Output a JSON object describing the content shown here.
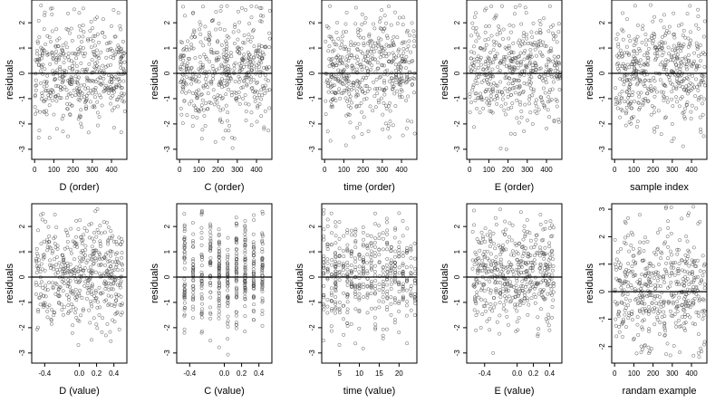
{
  "chart_data": [
    {
      "type": "scatter",
      "xlabel": "D (order)",
      "ylabel": "residuals",
      "xlim": [
        -15,
        480
      ],
      "ylim": [
        -3.4,
        2.9
      ],
      "xticks": [
        0,
        100,
        200,
        300,
        400
      ],
      "yticks": [
        -3,
        -2,
        -1,
        0,
        1,
        2
      ],
      "hline": 0,
      "grid": false,
      "point_count": 470,
      "x_range": [
        1,
        470
      ],
      "y_range": [
        -3.2,
        2.7
      ],
      "clusters": null,
      "seed": 11
    },
    {
      "type": "scatter",
      "xlabel": "C (order)",
      "ylabel": "residuals",
      "xlim": [
        -15,
        480
      ],
      "ylim": [
        -3.4,
        2.9
      ],
      "xticks": [
        0,
        100,
        200,
        300,
        400
      ],
      "yticks": [
        -3,
        -2,
        -1,
        0,
        1,
        2
      ],
      "hline": 0,
      "grid": false,
      "point_count": 470,
      "x_range": [
        1,
        470
      ],
      "y_range": [
        -3.2,
        2.7
      ],
      "clusters": null,
      "seed": 23
    },
    {
      "type": "scatter",
      "xlabel": "time (order)",
      "ylabel": "residuals",
      "xlim": [
        -15,
        480
      ],
      "ylim": [
        -3.4,
        2.9
      ],
      "xticks": [
        0,
        100,
        200,
        300,
        400
      ],
      "yticks": [
        -3,
        -2,
        -1,
        0,
        1,
        2
      ],
      "hline": 0,
      "grid": false,
      "point_count": 470,
      "x_range": [
        1,
        470
      ],
      "y_range": [
        -3.2,
        2.7
      ],
      "clusters": null,
      "seed": 37
    },
    {
      "type": "scatter",
      "xlabel": "E (order)",
      "ylabel": "residuals",
      "xlim": [
        -15,
        480
      ],
      "ylim": [
        -3.4,
        2.9
      ],
      "xticks": [
        0,
        100,
        200,
        300,
        400
      ],
      "yticks": [
        -3,
        -2,
        -1,
        0,
        1,
        2
      ],
      "hline": 0,
      "grid": false,
      "point_count": 470,
      "x_range": [
        1,
        470
      ],
      "y_range": [
        -3.2,
        2.7
      ],
      "clusters": null,
      "seed": 41
    },
    {
      "type": "scatter",
      "xlabel": "sample index",
      "ylabel": "residuals",
      "xlim": [
        -15,
        480
      ],
      "ylim": [
        -3.4,
        2.9
      ],
      "xticks": [
        0,
        100,
        200,
        300,
        400
      ],
      "yticks": [
        -3,
        -2,
        -1,
        0,
        1,
        2
      ],
      "hline": 0,
      "grid": false,
      "point_count": 470,
      "x_range": [
        1,
        470
      ],
      "y_range": [
        -3.2,
        2.7
      ],
      "clusters": null,
      "seed": 53
    },
    {
      "type": "scatter",
      "xlabel": "D (value)",
      "ylabel": "residuals",
      "xlim": [
        -0.55,
        0.55
      ],
      "ylim": [
        -3.4,
        2.9
      ],
      "xticks": [
        -0.4,
        0.0,
        0.2,
        0.4
      ],
      "xtick_labels": [
        "-0.4",
        "0.0",
        "0.2",
        "0.4"
      ],
      "yticks": [
        -3,
        -2,
        -1,
        0,
        1,
        2
      ],
      "hline": 0,
      "grid": false,
      "point_count": 470,
      "x_range": [
        -0.5,
        0.5
      ],
      "y_range": [
        -3.2,
        2.7
      ],
      "clusters": null,
      "seed": 61
    },
    {
      "type": "scatter",
      "xlabel": "C (value)",
      "ylabel": "residuals",
      "xlim": [
        -0.55,
        0.55
      ],
      "ylim": [
        -3.4,
        2.9
      ],
      "xticks": [
        -0.4,
        0.0,
        0.2,
        0.4
      ],
      "xtick_labels": [
        "-0.4",
        "0.0",
        "0.2",
        "0.4"
      ],
      "yticks": [
        -3,
        -2,
        -1,
        0,
        1,
        2
      ],
      "hline": 0,
      "grid": false,
      "point_count": 470,
      "x_range": [
        -0.5,
        0.5
      ],
      "y_range": [
        -3.2,
        2.7
      ],
      "clusters": [
        -0.46,
        -0.36,
        -0.26,
        -0.16,
        -0.06,
        0.04,
        0.14,
        0.24,
        0.34,
        0.44
      ],
      "seed": 71
    },
    {
      "type": "scatter",
      "xlabel": "time (value)",
      "ylabel": "residuals",
      "xlim": [
        0.5,
        24.5
      ],
      "ylim": [
        -3.4,
        2.9
      ],
      "xticks": [
        5,
        10,
        15,
        20
      ],
      "yticks": [
        -3,
        -2,
        -1,
        0,
        1,
        2
      ],
      "hline": 0,
      "grid": false,
      "point_count": 470,
      "x_range": [
        1,
        24
      ],
      "y_range": [
        -3.2,
        2.7
      ],
      "clusters": [
        1,
        2,
        3,
        4,
        5,
        6,
        7,
        8,
        9,
        10,
        11,
        12,
        13,
        14,
        15,
        16,
        17,
        18,
        19,
        20,
        21,
        22,
        23,
        24
      ],
      "seed": 83
    },
    {
      "type": "scatter",
      "xlabel": "E (value)",
      "ylabel": "residuals",
      "xlim": [
        -0.62,
        0.55
      ],
      "ylim": [
        -3.4,
        2.9
      ],
      "xticks": [
        -0.4,
        0.0,
        0.2,
        0.4
      ],
      "xtick_labels": [
        "-0.4",
        "0.0",
        "0.2",
        "0.4"
      ],
      "yticks": [
        -3,
        -2,
        -1,
        0,
        1,
        2
      ],
      "hline": 0,
      "grid": false,
      "point_count": 470,
      "x_range": [
        -0.55,
        0.45
      ],
      "y_range": [
        -3.2,
        2.7
      ],
      "clusters": null,
      "seed": 97
    },
    {
      "type": "scatter",
      "xlabel": "randam example",
      "ylabel": "residuals",
      "xlim": [
        -15,
        480
      ],
      "ylim": [
        -2.6,
        3.2
      ],
      "xticks": [
        0,
        100,
        200,
        300,
        400
      ],
      "yticks": [
        -2,
        -1,
        0,
        1,
        2,
        3
      ],
      "hline": 0,
      "grid": false,
      "point_count": 470,
      "x_range": [
        1,
        470
      ],
      "y_range": [
        -2.4,
        3.1
      ],
      "clusters": null,
      "seed": 101
    }
  ]
}
